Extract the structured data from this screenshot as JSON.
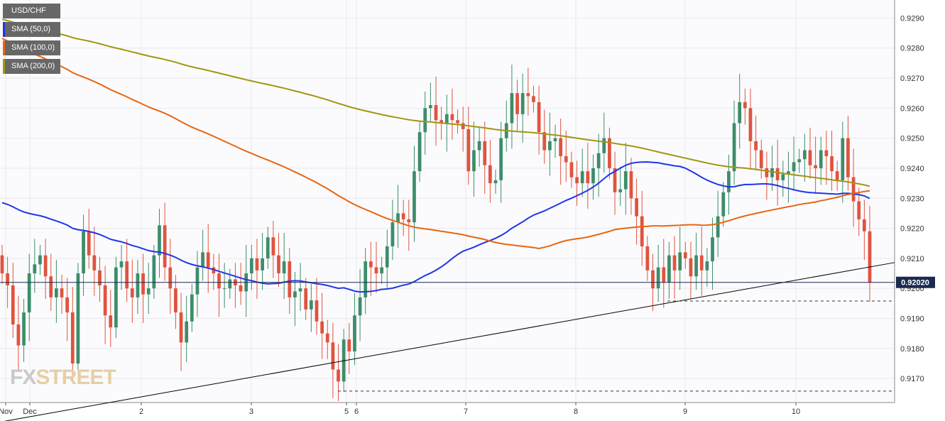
{
  "chart_data": {
    "type": "candlestick",
    "symbol": "USD/CHF",
    "current_price": 0.9202,
    "current_price_label": "0.92020",
    "ylim": [
      0.9162,
      0.9296
    ],
    "y_ticks": [
      "0.9290",
      "0.9280",
      "0.9270",
      "0.9260",
      "0.9250",
      "0.9240",
      "0.9230",
      "0.9220",
      "0.9210",
      "0.9200",
      "0.9190",
      "0.9180",
      "0.9170"
    ],
    "x_ticks": [
      "Nov",
      "Dec",
      "2",
      "3",
      "5",
      "6",
      "7",
      "8",
      "9",
      "10"
    ],
    "legend": [
      {
        "label": "USD/CHF",
        "color": "#676767"
      },
      {
        "label": "SMA (50,0)",
        "color": "#1f35e8"
      },
      {
        "label": "SMA (100,0)",
        "color": "#e8650f"
      },
      {
        "label": "SMA (200,0)",
        "color": "#a39511"
      }
    ],
    "colors": {
      "up": "#3d8d6a",
      "down": "#e0533e",
      "sma50": "#1f35e8",
      "sma100": "#e8650f",
      "sma200": "#a39511",
      "trendline": "#000000",
      "grid": "#e9eaee",
      "price_line": "#1a2b4f"
    },
    "support_levels": [
      0.91958,
      0.91658
    ],
    "trendline": {
      "from": {
        "x": 0,
        "y": 0.91555
      },
      "to": {
        "x": 1260,
        "y": 0.92086
      }
    },
    "closes": [
      0.9205,
      0.9201,
      0.9188,
      0.9181,
      0.9192,
      0.9205,
      0.9208,
      0.9211,
      0.9204,
      0.9197,
      0.92,
      0.9197,
      0.9192,
      0.9175,
      0.9205,
      0.9219,
      0.9211,
      0.9206,
      0.9201,
      0.9191,
      0.9187,
      0.9207,
      0.9209,
      0.92,
      0.9197,
      0.9205,
      0.9198,
      0.92,
      0.9211,
      0.9221,
      0.9207,
      0.92,
      0.9192,
      0.9182,
      0.9189,
      0.9198,
      0.9207,
      0.9212,
      0.9207,
      0.9205,
      0.92,
      0.92,
      0.9203,
      0.9201,
      0.9199,
      0.9205,
      0.921,
      0.9206,
      0.921,
      0.9217,
      0.9211,
      0.9205,
      0.9209,
      0.9197,
      0.9199,
      0.92,
      0.9193,
      0.9196,
      0.9189,
      0.9185,
      0.9182,
      0.9173,
      0.9169,
      0.9183,
      0.9179,
      0.9191,
      0.9197,
      0.9209,
      0.9207,
      0.9205,
      0.9207,
      0.9214,
      0.9222,
      0.9225,
      0.9223,
      0.9222,
      0.9239,
      0.9252,
      0.926,
      0.9261,
      0.9256,
      0.9255,
      0.9258,
      0.9256,
      0.9255,
      0.9253,
      0.9239,
      0.9246,
      0.9249,
      0.9241,
      0.9235,
      0.9236,
      0.925,
      0.9255,
      0.9265,
      0.9258,
      0.9265,
      0.9264,
      0.9262,
      0.9252,
      0.9246,
      0.9249,
      0.925,
      0.9244,
      0.9242,
      0.9237,
      0.9235,
      0.9239,
      0.9235,
      0.924,
      0.9245,
      0.925,
      0.924,
      0.9232,
      0.9233,
      0.9239,
      0.923,
      0.9224,
      0.9214,
      0.9206,
      0.92,
      0.9207,
      0.9202,
      0.9211,
      0.9206,
      0.9212,
      0.921,
      0.9204,
      0.9211,
      0.9206,
      0.9209,
      0.9217,
      0.9224,
      0.9232,
      0.9239,
      0.9255,
      0.9262,
      0.926,
      0.9249,
      0.9246,
      0.924,
      0.9237,
      0.924,
      0.9236,
      0.9238,
      0.9239,
      0.9242,
      0.9243,
      0.9246,
      0.9241,
      0.924,
      0.9246,
      0.9244,
      0.9239,
      0.9236,
      0.925,
      0.9237,
      0.9229,
      0.9223,
      0.9219,
      0.9202
    ]
  }
}
